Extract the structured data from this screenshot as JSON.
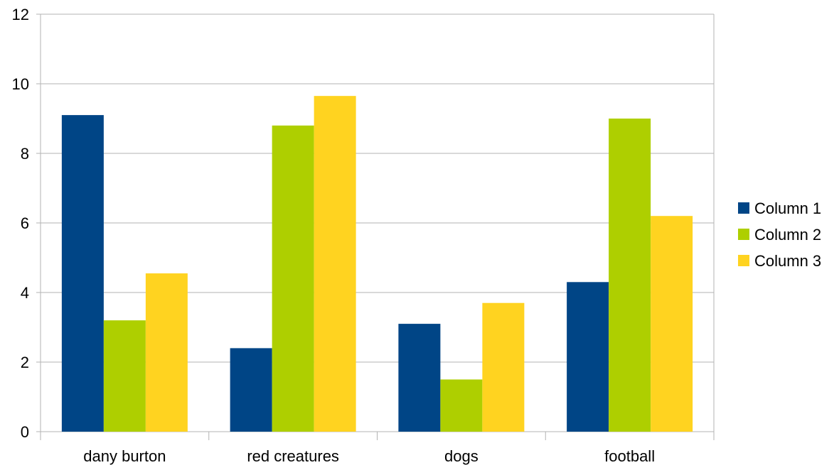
{
  "chart_data": {
    "type": "bar",
    "title": "",
    "xlabel": "",
    "ylabel": "",
    "categories": [
      "dany burton",
      "red creatures",
      "dogs",
      "football"
    ],
    "series": [
      {
        "name": "Column 1",
        "color": "#004586",
        "values": [
          9.1,
          2.4,
          3.1,
          4.3
        ]
      },
      {
        "name": "Column 2",
        "color": "#aecf00",
        "values": [
          3.2,
          8.8,
          1.5,
          9.0
        ]
      },
      {
        "name": "Column 3",
        "color": "#ffd320",
        "values": [
          4.55,
          9.65,
          3.7,
          6.2
        ]
      }
    ],
    "ylim": [
      0,
      12
    ],
    "yticks": [
      0,
      2,
      4,
      6,
      8,
      10,
      12
    ],
    "grid": true,
    "legend_position": "right"
  }
}
